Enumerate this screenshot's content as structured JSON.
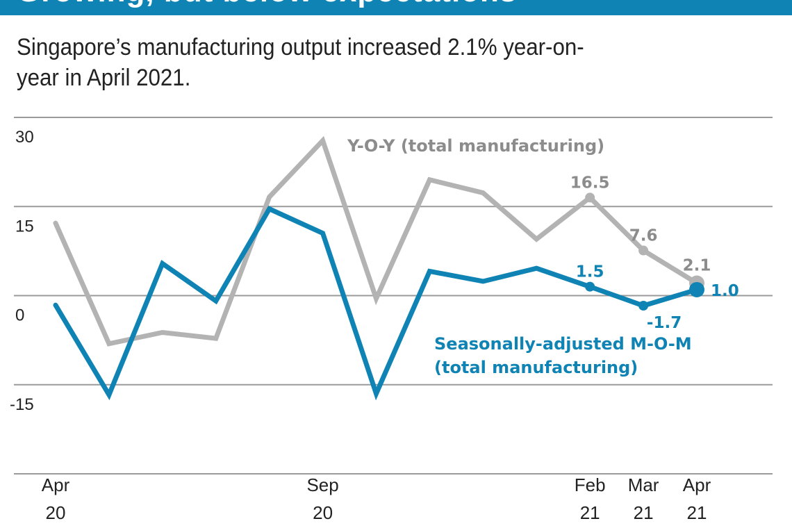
{
  "header": {
    "title": "Growing, but below expectations",
    "subtitle": "Singapore’s manufacturing output increased 2.1% year-on-year in April 2021."
  },
  "colors": {
    "banner": "#0f84b4",
    "yoy": "#b3b3b3",
    "yoy_text": "#8c8c8c",
    "mom": "#0f84b4",
    "grid": "#9a9a9a"
  },
  "chart_data": {
    "type": "line",
    "title": "Growing, but below expectations",
    "subtitle": "Singapore’s manufacturing output increased 2.1% year-on-year in April 2021.",
    "xlabel": "",
    "ylabel": "",
    "ylim": [
      -30,
      30
    ],
    "yticks": [
      30,
      15,
      0,
      -15
    ],
    "ytick_labels": [
      "30",
      "15",
      "0",
      "-15"
    ],
    "grid": true,
    "x": [
      "Apr 20",
      "May 20",
      "Jun 20",
      "Jul 20",
      "Aug 20",
      "Sep 20",
      "Oct 20",
      "Nov 20",
      "Dec 20",
      "Jan 21",
      "Feb 21",
      "Mar 21",
      "Apr 21"
    ],
    "xtick_labels": [
      {
        "index": 0,
        "line1": "Apr",
        "line2": "20"
      },
      {
        "index": 5,
        "line1": "Sep",
        "line2": "20"
      },
      {
        "index": 10,
        "line1": "Feb",
        "line2": "21"
      },
      {
        "index": 11,
        "line1": "Mar",
        "line2": "21"
      },
      {
        "index": 12,
        "line1": "Apr",
        "line2": "21"
      }
    ],
    "series": [
      {
        "name": "Y-O-Y (total manufacturing)",
        "label_lines": [
          "Y-O-Y (total manufacturing)"
        ],
        "values": [
          12.2,
          -8.1,
          -6.2,
          -7.2,
          16.6,
          26.1,
          -0.5,
          19.5,
          17.3,
          9.5,
          16.5,
          7.6,
          2.1
        ],
        "annotations": [
          {
            "index": 10,
            "text": "16.5"
          },
          {
            "index": 11,
            "text": "7.6"
          },
          {
            "index": 12,
            "text": "2.1"
          }
        ]
      },
      {
        "name": "Seasonally-adjusted M-O-M (total manufacturing)",
        "label_lines": [
          "Seasonally-adjusted M-O-M",
          "(total manufacturing)"
        ],
        "values": [
          -1.6,
          -16.7,
          5.4,
          -0.9,
          14.6,
          10.5,
          -16.5,
          4.1,
          2.4,
          4.6,
          1.5,
          -1.7,
          1.0
        ],
        "annotations": [
          {
            "index": 10,
            "text": "1.5"
          },
          {
            "index": 11,
            "text": "-1.7"
          },
          {
            "index": 12,
            "text": "1.0"
          }
        ]
      }
    ]
  }
}
